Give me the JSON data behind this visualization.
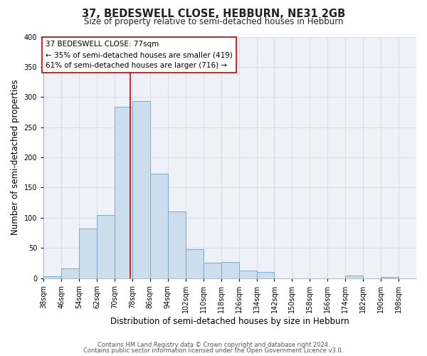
{
  "title": "37, BEDESWELL CLOSE, HEBBURN, NE31 2GB",
  "subtitle": "Size of property relative to semi-detached houses in Hebburn",
  "xlabel": "Distribution of semi-detached houses by size in Hebburn",
  "ylabel": "Number of semi-detached properties",
  "bin_edges": [
    38,
    46,
    54,
    62,
    70,
    78,
    86,
    94,
    102,
    110,
    118,
    126,
    134,
    142,
    150,
    158,
    166,
    174,
    182,
    190,
    198,
    206
  ],
  "bin_values": [
    3,
    16,
    82,
    104,
    284,
    293,
    173,
    111,
    48,
    25,
    27,
    13,
    10,
    0,
    0,
    0,
    0,
    4,
    0,
    2,
    0
  ],
  "bar_color": "#ccdded",
  "bar_edge_color": "#7aaac8",
  "property_size": 77,
  "vline_color": "#cc0000",
  "annotation_text": "37 BEDESWELL CLOSE: 77sqm\n← 35% of semi-detached houses are smaller (419)\n61% of semi-detached houses are larger (716) →",
  "annotation_bbox_edgecolor": "#cc0000",
  "annotation_bbox_facecolor": "#ffffff",
  "ylim": [
    0,
    400
  ],
  "yticks": [
    0,
    50,
    100,
    150,
    200,
    250,
    300,
    350,
    400
  ],
  "xtick_labels": [
    "38sqm",
    "46sqm",
    "54sqm",
    "62sqm",
    "70sqm",
    "78sqm",
    "86sqm",
    "94sqm",
    "102sqm",
    "110sqm",
    "118sqm",
    "126sqm",
    "134sqm",
    "142sqm",
    "150sqm",
    "158sqm",
    "166sqm",
    "174sqm",
    "182sqm",
    "190sqm",
    "198sqm"
  ],
  "footer_line1": "Contains HM Land Registry data © Crown copyright and database right 2024.",
  "footer_line2": "Contains public sector information licensed under the Open Government Licence v3.0.",
  "bg_color": "#ffffff",
  "plot_bg_color": "#eef2f8",
  "grid_color": "#d8dde8",
  "title_fontsize": 10.5,
  "subtitle_fontsize": 8.5,
  "axis_label_fontsize": 8.5,
  "tick_fontsize": 7,
  "annotation_fontsize": 7.5,
  "footer_fontsize": 6
}
